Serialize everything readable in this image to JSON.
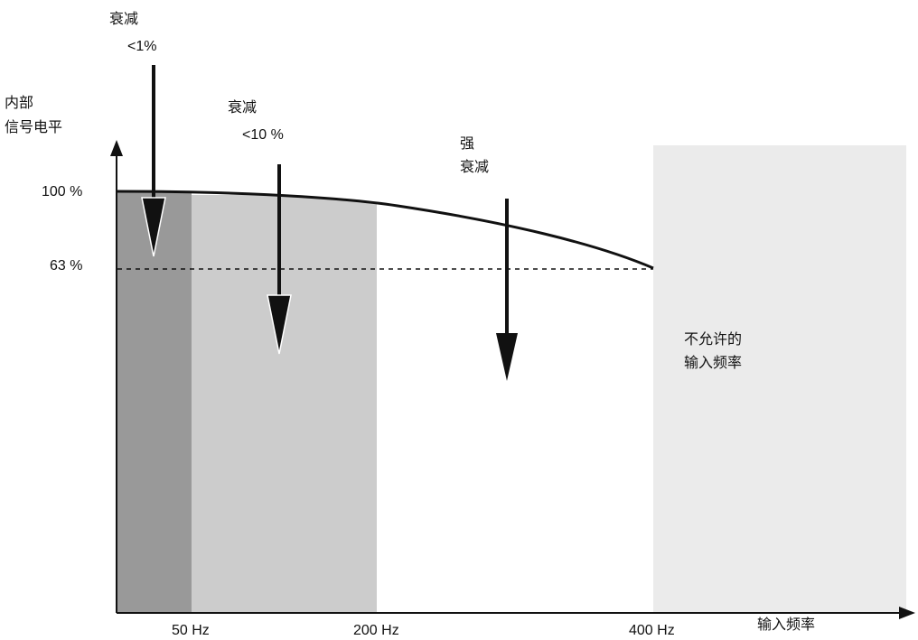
{
  "y_axis": {
    "title_line1": "内部",
    "title_line2": "信号电平",
    "tick_100": "100 %",
    "tick_63": "63 %"
  },
  "x_axis": {
    "title": "输入频率",
    "tick_50": "50 Hz",
    "tick_200": "200 Hz",
    "tick_400": "400 Hz"
  },
  "annotations": {
    "atten_1_line1": "衰减",
    "atten_1_line2": "<1%",
    "atten_10_line1": "衰减",
    "atten_10_line2": "<10 %",
    "strong_line1": "强",
    "strong_line2": "衰减",
    "forbidden_line1": "不允许的",
    "forbidden_line2": "输入频率"
  },
  "colors": {
    "band_low": "#999999",
    "band_mid": "#cccccc",
    "band_forbidden": "#ebebeb",
    "ink": "#111111"
  }
}
